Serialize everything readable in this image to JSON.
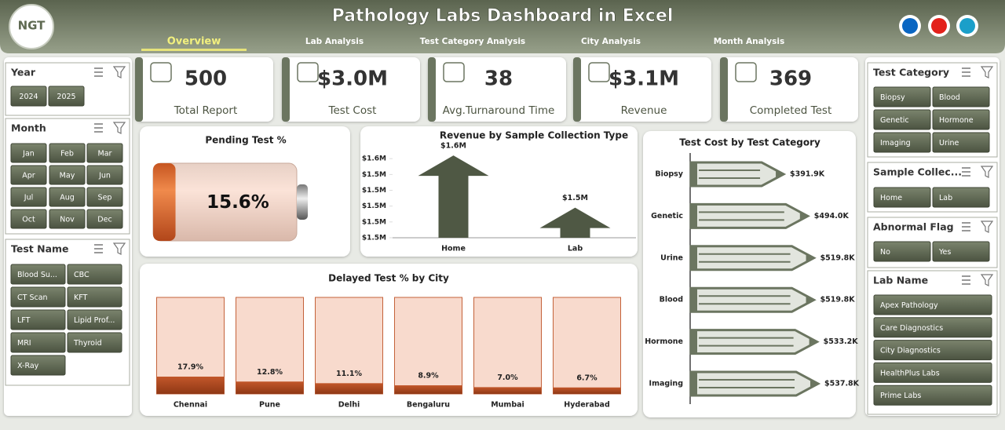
{
  "header": {
    "logo": "NGT",
    "title": "Pathology Labs Dashboard in Excel",
    "nav": [
      "Overview",
      "Lab Analysis",
      "Test Category Analysis",
      "City Analysis",
      "Month Analysis"
    ]
  },
  "slicers": [
    {
      "title": "Year",
      "items": [
        "2024",
        "2025"
      ]
    },
    {
      "title": "Month",
      "items": [
        "Jan",
        "Feb",
        "Mar",
        "Apr",
        "May",
        "Jun",
        "Jul",
        "Aug",
        "Sep",
        "Oct",
        "Nov",
        "Dec"
      ]
    },
    {
      "title": "Test Name",
      "items": [
        "Blood Su...",
        "CBC",
        "CT Scan",
        "KFT",
        "LFT",
        "Lipid Prof...",
        "MRI",
        "Thyroid",
        "X-Ray"
      ]
    },
    {
      "title": "Test Category",
      "items": [
        "Biopsy",
        "Blood",
        "Genetic",
        "Hormone",
        "Imaging",
        "Urine"
      ]
    },
    {
      "title": "Sample Collec...",
      "items": [
        "Home",
        "Lab"
      ]
    },
    {
      "title": "Abnormal Flag",
      "items": [
        "No",
        "Yes"
      ]
    },
    {
      "title": "Lab Name",
      "items": [
        "Apex Pathology",
        "Care Diagnostics",
        "City Diagnostics",
        "HealthPlus Labs",
        "Prime Labs"
      ]
    }
  ],
  "kpis": [
    {
      "value": "500",
      "label": "Total Report"
    },
    {
      "value": "$3.0M",
      "label": "Test Cost"
    },
    {
      "value": "38",
      "label": "Avg.Turnaround Time"
    },
    {
      "value": "$3.1M",
      "label": "Revenue"
    },
    {
      "value": "369",
      "label": "Completed Test"
    }
  ],
  "chart_data": [
    {
      "type": "battery",
      "title": "Pending Test %",
      "values": [
        15.6
      ],
      "value_labels": [
        "15.6%"
      ],
      "ylim": [
        0,
        100
      ],
      "color": "#e56b2c"
    },
    {
      "type": "arrow-bar",
      "title": "Revenue by Sample Collection Type",
      "categories": [
        "Home",
        "Lab"
      ],
      "values": [
        1552000,
        1519000
      ],
      "value_labels": [
        "$1.6M",
        "$1.5M"
      ],
      "color": "#4f5844",
      "ylim": [
        1500000,
        1560000
      ],
      "yticks": [
        {
          "value": 1500000,
          "label": "$1.5M"
        },
        {
          "value": 1510000,
          "label": "$1.5M"
        },
        {
          "value": 1520000,
          "label": "$1.5M"
        },
        {
          "value": 1530000,
          "label": "$1.5M"
        },
        {
          "value": 1540000,
          "label": "$1.5M"
        },
        {
          "value": 1550000,
          "label": "$1.6M"
        }
      ]
    },
    {
      "type": "bar",
      "title": "Delayed Test % by City",
      "categories": [
        "Chennai",
        "Pune",
        "Delhi",
        "Bengaluru",
        "Mumbai",
        "Hyderabad"
      ],
      "values": [
        17.9,
        12.8,
        11.1,
        8.9,
        7,
        6.7
      ],
      "value_labels": [
        "17.9%",
        "12.8%",
        "11.1%",
        "8.9%",
        "7.0%",
        "6.7%"
      ],
      "ylim": [
        0,
        100
      ],
      "color": "#a8461f"
    },
    {
      "type": "pencil",
      "title": "Test Cost by Test Category",
      "categories": [
        "Biopsy",
        "Genetic",
        "Urine",
        "Blood",
        "Hormone",
        "Imaging"
      ],
      "values": [
        391900,
        494000,
        519800,
        519800,
        533200,
        537800
      ],
      "value_labels": [
        "$391.9K",
        "$494.0K",
        "$519.8K",
        "$519.8K",
        "$533.2K",
        "$537.8K"
      ],
      "color": "#6b7560"
    }
  ]
}
